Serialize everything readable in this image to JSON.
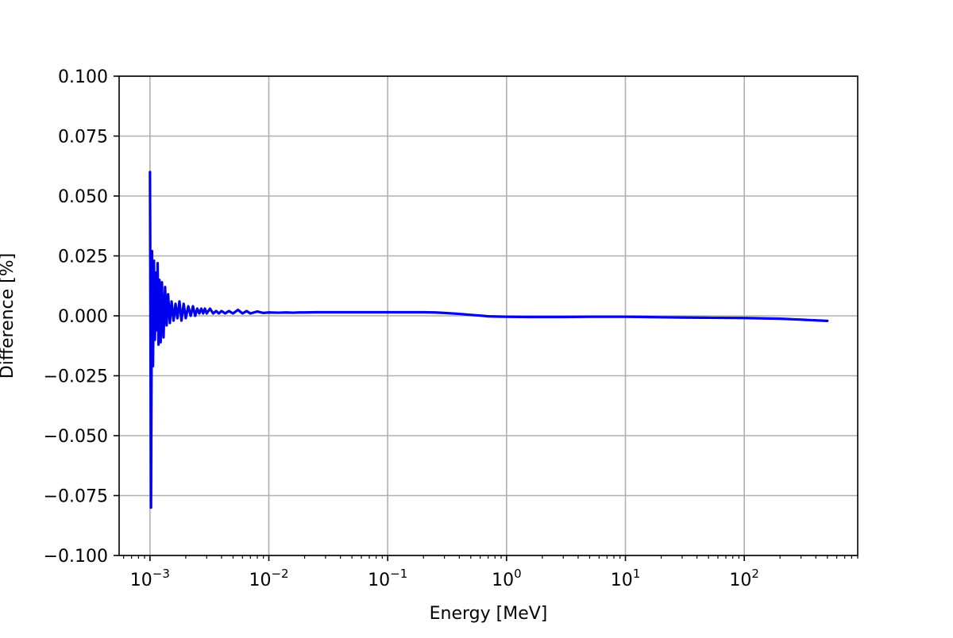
{
  "chart_data": {
    "type": "line",
    "xlabel": "Energy [MeV]",
    "ylabel": "Difference [%]",
    "xscale": "log",
    "xlim": [
      0.00055,
      900
    ],
    "ylim": [
      -0.1,
      0.1
    ],
    "grid": true,
    "legend": "none",
    "x_ticks": [
      {
        "value": 0.001,
        "mantissa": "10",
        "exponent": "−3"
      },
      {
        "value": 0.01,
        "mantissa": "10",
        "exponent": "−2"
      },
      {
        "value": 0.1,
        "mantissa": "10",
        "exponent": "−1"
      },
      {
        "value": 1,
        "mantissa": "10",
        "exponent": "0"
      },
      {
        "value": 10,
        "mantissa": "10",
        "exponent": "1"
      },
      {
        "value": 100,
        "mantissa": "10",
        "exponent": "2"
      }
    ],
    "y_ticks": [
      {
        "value": 0.1,
        "label": "0.100"
      },
      {
        "value": 0.075,
        "label": "0.075"
      },
      {
        "value": 0.05,
        "label": "0.050"
      },
      {
        "value": 0.025,
        "label": "0.025"
      },
      {
        "value": 0.0,
        "label": "0.000"
      },
      {
        "value": -0.025,
        "label": "−0.025"
      },
      {
        "value": -0.05,
        "label": "−0.050"
      },
      {
        "value": -0.075,
        "label": "−0.075"
      },
      {
        "value": -0.1,
        "label": "−0.100"
      }
    ],
    "series": [
      {
        "color": "#0000ee",
        "x": [
          0.001,
          0.00102,
          0.00104,
          0.00106,
          0.00108,
          0.0011,
          0.00112,
          0.00114,
          0.00116,
          0.00118,
          0.0012,
          0.00123,
          0.00126,
          0.0013,
          0.00134,
          0.00138,
          0.00142,
          0.00147,
          0.00152,
          0.00158,
          0.00164,
          0.0017,
          0.00177,
          0.00184,
          0.00192,
          0.002,
          0.0021,
          0.0022,
          0.0023,
          0.0024,
          0.0025,
          0.0026,
          0.0027,
          0.0028,
          0.0029,
          0.003,
          0.0032,
          0.0034,
          0.0036,
          0.0038,
          0.004,
          0.0043,
          0.0046,
          0.005,
          0.0055,
          0.006,
          0.0065,
          0.007,
          0.008,
          0.009,
          0.01,
          0.012,
          0.014,
          0.016,
          0.018,
          0.02,
          0.025,
          0.03,
          0.04,
          0.05,
          0.07,
          0.1,
          0.15,
          0.2,
          0.25,
          0.3,
          0.4,
          0.5,
          0.6,
          0.7,
          0.8,
          1,
          1.5,
          2,
          3,
          5,
          7,
          10,
          15,
          20,
          30,
          50,
          100,
          200,
          300,
          500
        ],
        "y": [
          0.06,
          -0.08,
          0.027,
          -0.021,
          0.023,
          -0.01,
          0.018,
          -0.006,
          0.022,
          -0.012,
          0.015,
          -0.011,
          0.014,
          -0.009,
          0.012,
          -0.004,
          0.009,
          -0.003,
          0.006,
          -0.002,
          0.005,
          -0.001,
          0.006,
          -0.002,
          0.005,
          -0.001,
          0.004,
          0.0,
          0.004,
          0.0,
          0.003,
          0.001,
          0.003,
          0.001,
          0.003,
          0.001,
          0.003,
          0.001,
          0.002,
          0.001,
          0.002,
          0.001,
          0.002,
          0.001,
          0.0025,
          0.001,
          0.002,
          0.001,
          0.0018,
          0.0012,
          0.0014,
          0.0013,
          0.0014,
          0.0013,
          0.0014,
          0.0014,
          0.0015,
          0.0015,
          0.0015,
          0.0015,
          0.0015,
          0.0015,
          0.0015,
          0.0015,
          0.0014,
          0.0012,
          0.0008,
          0.0004,
          0.0001,
          -0.0002,
          -0.0003,
          -0.0004,
          -0.0005,
          -0.0005,
          -0.0005,
          -0.0004,
          -0.0004,
          -0.0004,
          -0.0005,
          -0.0006,
          -0.0007,
          -0.0008,
          -0.0009,
          -0.0012,
          -0.0016,
          -0.0021
        ]
      }
    ]
  }
}
